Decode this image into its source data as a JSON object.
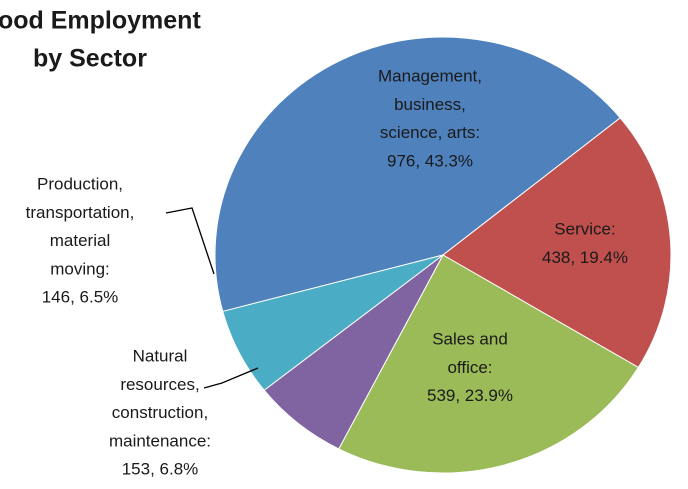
{
  "chart_data": {
    "type": "pie",
    "title": [
      "ood Employment",
      "by Sector"
    ],
    "values": [
      976,
      438,
      539,
      153,
      146
    ],
    "value_labels": [
      [
        "Management,",
        "business,",
        "science, arts:",
        "976, 43.3%"
      ],
      [
        "Service:",
        "438, 19.4%"
      ],
      [
        "Sales and",
        "office:",
        "539, 23.9%"
      ],
      [
        "Natural",
        "resources,",
        "construction,",
        "maintenance:",
        "153, 6.8%"
      ],
      [
        "Production,",
        "transportation,",
        "material",
        "moving:",
        "146, 6.5%"
      ]
    ],
    "colors": [
      "#4f81bd",
      "#c0504d",
      "#9bbb59",
      "#8064a2",
      "#4bacc6"
    ]
  }
}
